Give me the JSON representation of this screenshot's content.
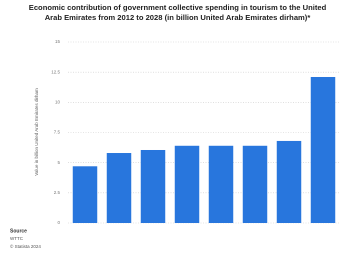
{
  "chart_data": {
    "type": "bar",
    "title": "Economic contribution of government collective spending in tourism to the United Arab Emirates from 2012 to 2028 (in billion United Arab Emirates dirham)*",
    "y_label": "Value in billion United Arab Emirates dirham",
    "categories": [
      null,
      null,
      null,
      null,
      null,
      null,
      null,
      null
    ],
    "values": [
      4.7,
      5.8,
      6.05,
      6.4,
      6.4,
      6.4,
      6.8,
      12.1
    ],
    "color": "#2876dd",
    "ylim": [
      0,
      15
    ],
    "yticks": [
      0,
      2.5,
      5,
      7.5,
      10,
      12.5,
      15
    ],
    "grid": true,
    "source_label": "Source",
    "source": "WTTC",
    "copyright": "© Statista 2024"
  }
}
